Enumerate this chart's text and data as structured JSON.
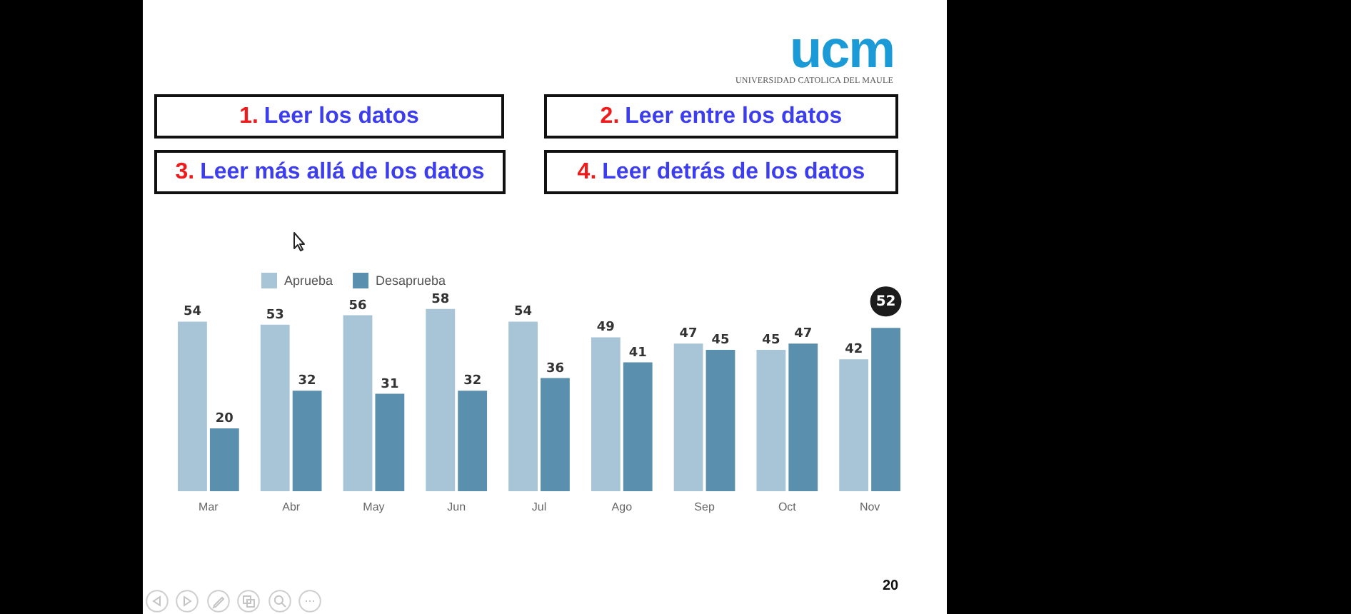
{
  "chart_data": {
    "type": "bar",
    "categories": [
      "Mar",
      "Abr",
      "May",
      "Jun",
      "Jul",
      "Ago",
      "Sep",
      "Oct",
      "Nov"
    ],
    "series": [
      {
        "name": "Aprueba",
        "color": "#a7c5d7",
        "values": [
          54,
          53,
          56,
          58,
          54,
          49,
          47,
          45,
          42
        ],
        "value_labels": [
          "54",
          "53",
          "56",
          "58",
          "54",
          "49",
          "47",
          "45",
          "42"
        ]
      },
      {
        "name": "Desaprueba",
        "color": "#5b8fae",
        "values": [
          20,
          32,
          31,
          32,
          36,
          41,
          45,
          47,
          52
        ],
        "value_labels": [
          "20",
          "32",
          "31",
          "32",
          "36",
          "41",
          "45",
          "47",
          null
        ]
      }
    ],
    "legend": "top left",
    "tick_labels": "x",
    "annotations": [
      "1. Leer los datos",
      "2. Leer entre los datos",
      "3. Leer más allá de los datos",
      "4. Leer detrás de los datos",
      {
        "text": "52",
        "x": "Nov",
        "y": 52
      },
      "ucm",
      "UNIVERSIDAD CATOLICA DEL MAULE",
      "20"
    ]
  }
}
